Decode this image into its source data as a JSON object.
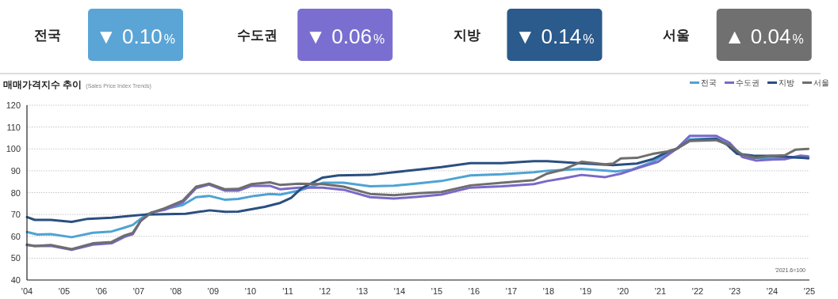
{
  "chart_data": [
    {
      "type": "other",
      "categories": [
        "전국",
        "수도권",
        "지방",
        "서울"
      ],
      "value_labels": [
        "▼ 0.10%",
        "▼ 0.06%",
        "▼ 0.14%",
        "▲ 0.04%"
      ],
      "colors": [
        "#5aa5d6",
        "#7a6fd0",
        "#2b5a8c",
        "#707070"
      ]
    },
    {
      "type": "line",
      "title": "매매가격지수 추이",
      "subtitle": "(Sales Price Index Trends)",
      "annotations": [
        "'2021.6=100"
      ],
      "xlim": [
        2004,
        2025
      ],
      "xticks": [
        {
          "value": 2004,
          "label": "'04"
        },
        {
          "value": 2005,
          "label": "'05"
        },
        {
          "value": 2006,
          "label": "'06"
        },
        {
          "value": 2007,
          "label": "'07"
        },
        {
          "value": 2008,
          "label": "'08"
        },
        {
          "value": 2009,
          "label": "'09"
        },
        {
          "value": 2010,
          "label": "'10"
        },
        {
          "value": 2011,
          "label": "'11"
        },
        {
          "value": 2012,
          "label": "'12"
        },
        {
          "value": 2013,
          "label": "'13"
        },
        {
          "value": 2014,
          "label": "'14"
        },
        {
          "value": 2015,
          "label": "'15"
        },
        {
          "value": 2016,
          "label": "'16"
        },
        {
          "value": 2017,
          "label": "'17"
        },
        {
          "value": 2018,
          "label": "'18"
        },
        {
          "value": 2019,
          "label": "'19"
        },
        {
          "value": 2020,
          "label": "'20"
        },
        {
          "value": 2021,
          "label": "'21"
        },
        {
          "value": 2022,
          "label": "'22"
        },
        {
          "value": 2023,
          "label": "'23"
        },
        {
          "value": 2024,
          "label": "'24"
        },
        {
          "value": 2025,
          "label": "'25"
        }
      ],
      "ylim": [
        40,
        120
      ],
      "yticks": [
        40,
        50,
        60,
        70,
        80,
        90,
        100,
        110,
        120
      ],
      "grid": "y",
      "legend": "top right",
      "marker": "none",
      "line_style": "solid",
      "series": [
        {
          "name": "전국",
          "color": "#4ea3d4",
          "x": [
            2004,
            2004.28,
            2004.64,
            2005.2,
            2005.77,
            2006.27,
            2006.62,
            2006.84,
            2007.2,
            2007.69,
            2008.18,
            2008.54,
            2008.89,
            2009.32,
            2009.67,
            2010.1,
            2010.52,
            2010.8,
            2011.3,
            2011.94,
            2012.5,
            2013.21,
            2013.85,
            2014.42,
            2015.12,
            2015.9,
            2016.75,
            2017.6,
            2017.96,
            2018.88,
            2019.8,
            2020.23,
            2020.79,
            2021.22,
            2021.43,
            2021.79,
            2022.49,
            2022.78,
            2023.06,
            2023.49,
            2023.98,
            2024.34,
            2024.97
          ],
          "values": [
            62,
            60.8,
            61,
            59.6,
            61.6,
            62.2,
            64,
            65.2,
            70,
            72.5,
            74.3,
            77.9,
            78.5,
            76.7,
            77.1,
            78.5,
            79.4,
            79.1,
            80.9,
            84.5,
            84.5,
            82.9,
            83.2,
            84.1,
            85.3,
            87.9,
            88.4,
            89.3,
            90,
            90.9,
            89.7,
            90.5,
            94.1,
            98.3,
            100,
            104.4,
            104.8,
            102.4,
            98.3,
            95.9,
            95.9,
            96.2,
            95.9
          ]
        },
        {
          "name": "수도권",
          "color": "#7b68c8",
          "x": [
            2004,
            2004.21,
            2004.64,
            2005.2,
            2005.77,
            2006.27,
            2006.62,
            2006.84,
            2007.05,
            2007.33,
            2007.69,
            2008.18,
            2008.54,
            2008.89,
            2009.32,
            2009.67,
            2010.03,
            2010.52,
            2010.8,
            2011.3,
            2011.94,
            2012.5,
            2013.21,
            2013.85,
            2014.49,
            2015.12,
            2015.9,
            2016.75,
            2017.6,
            2017.96,
            2018.39,
            2018.88,
            2019.52,
            2019.94,
            2020.37,
            2020.94,
            2021.43,
            2021.79,
            2022.49,
            2022.85,
            2023.2,
            2023.56,
            2023.98,
            2024.34,
            2024.76,
            2024.97
          ],
          "values": [
            56,
            55.6,
            55.6,
            53.8,
            56.2,
            56.8,
            59.8,
            61,
            67,
            70.9,
            72.1,
            75.5,
            82.1,
            83.7,
            80.9,
            80.9,
            83.1,
            83.1,
            81.5,
            82.3,
            82.3,
            81.3,
            77.9,
            77.3,
            78.1,
            79.1,
            82.3,
            82.9,
            83.9,
            85.3,
            86.5,
            88.1,
            87.1,
            88.7,
            91.1,
            94.1,
            100,
            106,
            106,
            102.9,
            96.3,
            94.7,
            95.1,
            95.3,
            96.9,
            96.6
          ]
        },
        {
          "name": "지방",
          "color": "#2a4f80",
          "x": [
            2004,
            2004.21,
            2004.64,
            2005.2,
            2005.63,
            2006.27,
            2006.7,
            2007.2,
            2008.26,
            2008.9,
            2009.32,
            2009.67,
            2010.38,
            2010.8,
            2011.09,
            2011.37,
            2011.94,
            2012.36,
            2013.21,
            2013.85,
            2014.49,
            2015.12,
            2015.9,
            2016.75,
            2017.6,
            2017.96,
            2018.81,
            2019.73,
            2020.37,
            2020.79,
            2021.22,
            2021.43,
            2021.79,
            2022.49,
            2022.78,
            2023.06,
            2023.49,
            2023.98,
            2024.34,
            2024.97
          ],
          "values": [
            68.8,
            67.5,
            67.5,
            66.6,
            68,
            68.5,
            69.2,
            70,
            70.3,
            71.9,
            71.2,
            71.3,
            73.5,
            75.3,
            77.6,
            82,
            86.9,
            87.9,
            88.1,
            89.3,
            90.5,
            91.7,
            93.5,
            93.5,
            94.4,
            94.4,
            93.5,
            92.6,
            93.3,
            95.3,
            98.9,
            100,
            103.8,
            104.6,
            102,
            97.7,
            96.9,
            96.8,
            96.5,
            95.7
          ]
        },
        {
          "name": "서울",
          "color": "#6e6e6e",
          "x": [
            2004,
            2004.21,
            2004.64,
            2005.2,
            2005.77,
            2006.27,
            2006.62,
            2006.84,
            2007.05,
            2007.33,
            2007.69,
            2008.18,
            2008.54,
            2008.89,
            2009.32,
            2009.67,
            2010.03,
            2010.52,
            2010.8,
            2011.3,
            2011.94,
            2012.5,
            2013.21,
            2013.85,
            2014.49,
            2015.12,
            2015.9,
            2016.75,
            2017.6,
            2017.96,
            2018.39,
            2018.88,
            2019.52,
            2019.73,
            2019.94,
            2020.37,
            2020.79,
            2021.22,
            2021.43,
            2021.79,
            2022.49,
            2022.85,
            2023.2,
            2023.56,
            2023.98,
            2024.34,
            2024.62,
            2024.97
          ],
          "values": [
            56.2,
            55.6,
            56,
            54.1,
            56.8,
            57.4,
            60.4,
            61.6,
            67,
            70.7,
            72.8,
            76.3,
            82.7,
            84.1,
            81.5,
            81.7,
            83.9,
            84.7,
            83.5,
            84.1,
            83.9,
            82.7,
            79.4,
            78.8,
            79.7,
            80.3,
            83.3,
            84.5,
            85.7,
            88.7,
            90.5,
            94.1,
            92.9,
            93.3,
            95.7,
            95.9,
            97.7,
            98.9,
            100,
            103.6,
            104,
            101.8,
            97.3,
            95.9,
            96.8,
            97.1,
            99.6,
            100
          ]
        }
      ]
    }
  ]
}
